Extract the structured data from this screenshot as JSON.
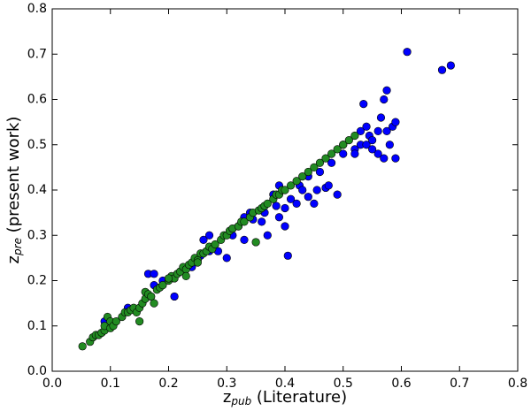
{
  "chart_data": {
    "type": "scatter",
    "x_label": "z",
    "x_label_sub": "pub",
    "x_label_rest": " (Literature)",
    "y_label": "z",
    "y_label_sub": "pre",
    "y_label_rest": " (present work)",
    "xlim": [
      0,
      0.8
    ],
    "ylim": [
      0,
      0.8
    ],
    "xticks": [
      {
        "value": 0,
        "label": "0.0"
      },
      0.1,
      0.2,
      0.3,
      0.4,
      0.5,
      0.6,
      0.7,
      0.8
    ],
    "yticks": [
      {
        "value": 0,
        "label": "0.0"
      },
      0.1,
      0.2,
      0.3,
      0.4,
      0.5,
      0.6,
      0.7,
      0.8
    ],
    "series": [
      {
        "color": "#0000ff",
        "x": [
          0.09,
          0.13,
          0.165,
          0.175,
          0.175,
          0.19,
          0.21,
          0.22,
          0.24,
          0.255,
          0.26,
          0.27,
          0.27,
          0.285,
          0.3,
          0.31,
          0.32,
          0.33,
          0.33,
          0.34,
          0.345,
          0.36,
          0.365,
          0.37,
          0.38,
          0.385,
          0.39,
          0.39,
          0.4,
          0.4,
          0.405,
          0.41,
          0.42,
          0.425,
          0.43,
          0.44,
          0.44,
          0.45,
          0.455,
          0.46,
          0.47,
          0.475,
          0.48,
          0.49,
          0.5,
          0.52,
          0.52,
          0.53,
          0.53,
          0.535,
          0.54,
          0.54,
          0.545,
          0.55,
          0.56,
          0.56,
          0.565,
          0.57,
          0.575,
          0.575,
          0.58,
          0.585,
          0.59,
          0.59,
          0.57,
          0.61,
          0.67,
          0.685,
          0.55,
          0.5
        ],
        "y": [
          0.11,
          0.14,
          0.215,
          0.215,
          0.19,
          0.2,
          0.165,
          0.22,
          0.23,
          0.255,
          0.29,
          0.3,
          0.265,
          0.265,
          0.25,
          0.3,
          0.32,
          0.29,
          0.34,
          0.35,
          0.335,
          0.33,
          0.35,
          0.3,
          0.39,
          0.365,
          0.41,
          0.34,
          0.32,
          0.36,
          0.255,
          0.38,
          0.37,
          0.41,
          0.4,
          0.385,
          0.43,
          0.37,
          0.4,
          0.44,
          0.405,
          0.41,
          0.46,
          0.39,
          0.5,
          0.49,
          0.48,
          0.5,
          0.53,
          0.59,
          0.54,
          0.5,
          0.52,
          0.51,
          0.53,
          0.48,
          0.56,
          0.6,
          0.62,
          0.53,
          0.5,
          0.54,
          0.47,
          0.55,
          0.47,
          0.705,
          0.665,
          0.675,
          0.49,
          0.48
        ]
      },
      {
        "color": "#228b22",
        "x": [
          0.052,
          0.065,
          0.07,
          0.075,
          0.08,
          0.085,
          0.09,
          0.09,
          0.095,
          0.1,
          0.1,
          0.105,
          0.11,
          0.12,
          0.125,
          0.13,
          0.135,
          0.14,
          0.145,
          0.15,
          0.15,
          0.155,
          0.16,
          0.16,
          0.165,
          0.17,
          0.175,
          0.18,
          0.185,
          0.19,
          0.2,
          0.205,
          0.21,
          0.215,
          0.22,
          0.225,
          0.23,
          0.235,
          0.24,
          0.245,
          0.25,
          0.255,
          0.26,
          0.265,
          0.27,
          0.275,
          0.28,
          0.29,
          0.295,
          0.3,
          0.305,
          0.31,
          0.32,
          0.325,
          0.33,
          0.34,
          0.345,
          0.35,
          0.355,
          0.36,
          0.365,
          0.37,
          0.38,
          0.385,
          0.39,
          0.395,
          0.4,
          0.41,
          0.42,
          0.43,
          0.44,
          0.45,
          0.46,
          0.47,
          0.48,
          0.49,
          0.5,
          0.51,
          0.52,
          0.23,
          0.25,
          0.2
        ],
        "y": [
          0.055,
          0.065,
          0.075,
          0.08,
          0.08,
          0.085,
          0.09,
          0.1,
          0.12,
          0.095,
          0.11,
          0.1,
          0.11,
          0.12,
          0.13,
          0.13,
          0.135,
          0.14,
          0.13,
          0.14,
          0.11,
          0.15,
          0.16,
          0.175,
          0.17,
          0.165,
          0.15,
          0.18,
          0.185,
          0.19,
          0.2,
          0.21,
          0.205,
          0.215,
          0.22,
          0.23,
          0.225,
          0.235,
          0.24,
          0.25,
          0.245,
          0.26,
          0.26,
          0.265,
          0.275,
          0.27,
          0.28,
          0.29,
          0.3,
          0.3,
          0.31,
          0.315,
          0.32,
          0.33,
          0.33,
          0.34,
          0.35,
          0.285,
          0.355,
          0.36,
          0.365,
          0.37,
          0.38,
          0.39,
          0.39,
          0.4,
          0.4,
          0.41,
          0.42,
          0.43,
          0.44,
          0.45,
          0.46,
          0.47,
          0.48,
          0.49,
          0.5,
          0.51,
          0.52,
          0.21,
          0.24,
          0.205
        ]
      }
    ]
  }
}
